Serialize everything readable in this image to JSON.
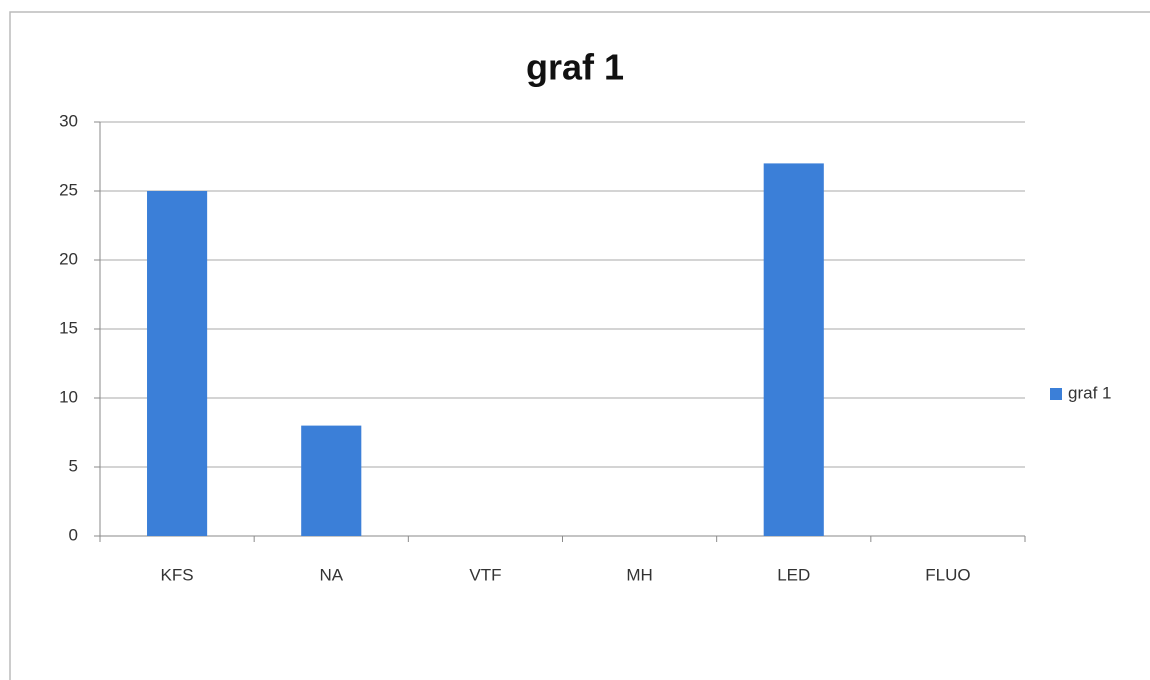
{
  "chart_data": {
    "type": "bar",
    "title": "graf 1",
    "categories": [
      "KFS",
      "NA",
      "VTF",
      "MH",
      "LED",
      "FLUO"
    ],
    "series": [
      {
        "name": "graf 1",
        "color": "#3b7fd8",
        "values": [
          25,
          8,
          0,
          0,
          27,
          0
        ]
      }
    ],
    "ylim": [
      0,
      30
    ],
    "yticks": [
      0,
      5,
      10,
      15,
      20,
      25,
      30
    ],
    "grid": true,
    "legend": "right"
  }
}
